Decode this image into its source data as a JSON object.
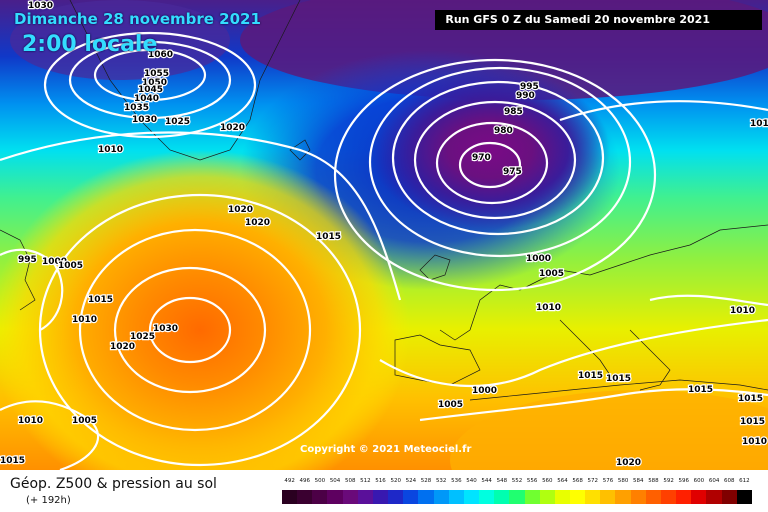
{
  "map": {
    "date_label": "Dimanche 28 novembre 2021",
    "hour_label": "2:00 locale",
    "run_label": "Run GFS 0 Z du Samedi 20 novembre 2021",
    "copyright": "Copyright © 2021 Meteociel.fr",
    "isobar_labels": [
      "1030",
      "1060",
      "1055",
      "1050",
      "1045",
      "1040",
      "1035",
      "1030",
      "1025",
      "1020",
      "1010",
      "1015",
      "995",
      "1000",
      "1005",
      "1010",
      "1015",
      "1020",
      "1025",
      "1030",
      "1020",
      "1020",
      "1015",
      "970",
      "975",
      "980",
      "985",
      "990",
      "995",
      "1000",
      "1005",
      "1010",
      "1015",
      "1015",
      "1000",
      "1005",
      "1020",
      "1010",
      "1005",
      "1015",
      "1015",
      "1015",
      "1015",
      "1010",
      "1010"
    ]
  },
  "footer": {
    "title": "Géop. Z500 & pression au sol",
    "subtitle": "(+ 192h)",
    "scale_labels": [
      "492",
      "496",
      "500",
      "504",
      "508",
      "512",
      "516",
      "520",
      "524",
      "528",
      "532",
      "536",
      "540",
      "544",
      "548",
      "552",
      "556",
      "560",
      "564",
      "568",
      "572",
      "576",
      "580",
      "584",
      "588",
      "592",
      "596",
      "600",
      "604",
      "608",
      "612"
    ],
    "scale_colors": [
      "#2a0020",
      "#3a0030",
      "#4c0046",
      "#5e0060",
      "#6a0a7a",
      "#5a109a",
      "#3818b0",
      "#1e28c8",
      "#0a46e0",
      "#0070f0",
      "#0098f8",
      "#00c0ff",
      "#00e4ff",
      "#00ffe0",
      "#00ffb0",
      "#20ff70",
      "#70ff30",
      "#b0ff10",
      "#e8ff00",
      "#ffff00",
      "#ffe000",
      "#ffc000",
      "#ffa000",
      "#ff8000",
      "#ff6000",
      "#ff4000",
      "#ff2000",
      "#e00000",
      "#b00000",
      "#800000",
      "#000000"
    ]
  }
}
